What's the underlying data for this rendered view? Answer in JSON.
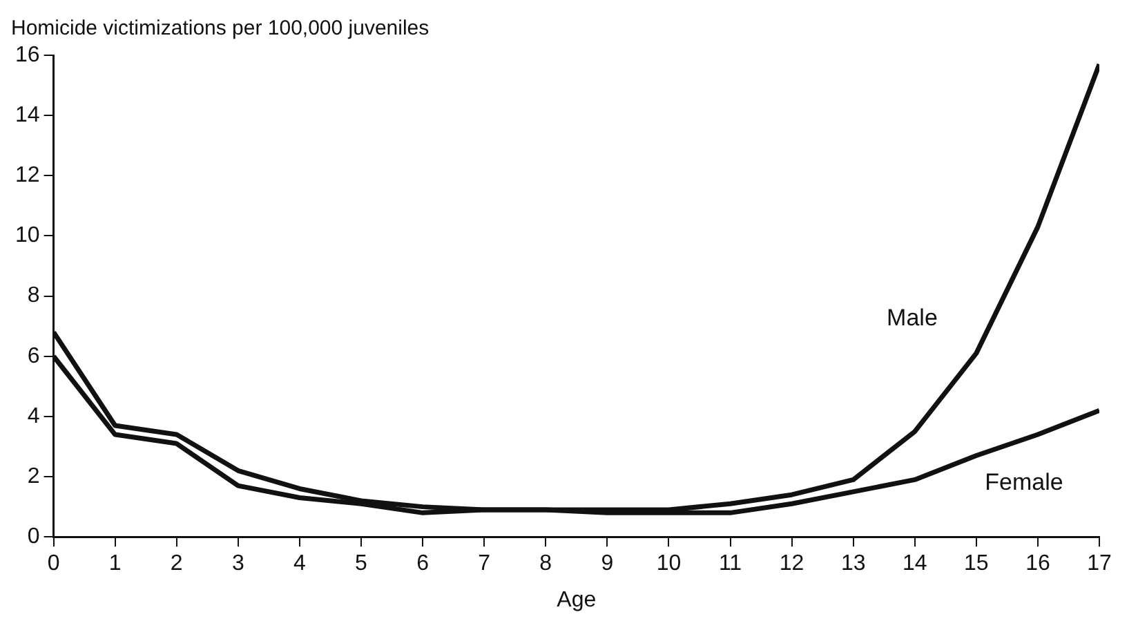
{
  "chart_data": {
    "type": "line",
    "ylabel": "Homicide victimizations per 100,000 juveniles",
    "xlabel": "Age",
    "x": [
      0,
      1,
      2,
      3,
      4,
      5,
      6,
      7,
      8,
      9,
      10,
      11,
      12,
      13,
      14,
      15,
      16,
      17
    ],
    "xlim": [
      0,
      17
    ],
    "xticks": [
      0,
      1,
      2,
      3,
      4,
      5,
      6,
      7,
      8,
      9,
      10,
      11,
      12,
      13,
      14,
      15,
      16,
      17
    ],
    "series": [
      {
        "name": "Male",
        "color": "#111111",
        "values": [
          6.8,
          3.7,
          3.4,
          2.2,
          1.6,
          1.2,
          1.0,
          0.9,
          0.9,
          0.9,
          0.9,
          1.1,
          1.4,
          1.9,
          3.5,
          6.1,
          10.3,
          15.7
        ]
      },
      {
        "name": "Female",
        "color": "#111111",
        "values": [
          6.0,
          3.4,
          3.1,
          1.7,
          1.3,
          1.1,
          0.8,
          0.9,
          0.9,
          0.8,
          0.8,
          0.8,
          1.1,
          1.5,
          1.9,
          2.7,
          3.4,
          4.2
        ]
      }
    ],
    "ylim": [
      0,
      16
    ],
    "yticks": [
      0,
      2,
      4,
      6,
      8,
      10,
      12,
      14,
      16
    ],
    "grid": false,
    "legend": false,
    "marker": "none",
    "line_style": "solid"
  }
}
